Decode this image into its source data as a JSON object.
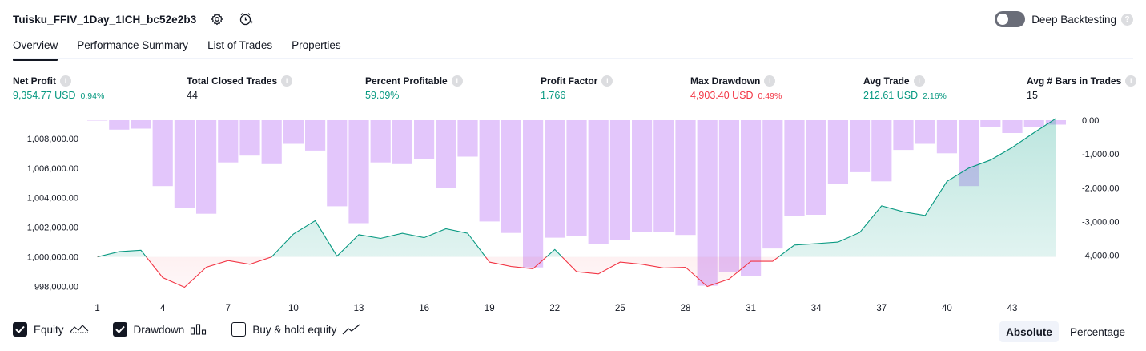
{
  "header": {
    "title": "Tuisku_FFIV_1Day_1ICH_bc52e2b3"
  },
  "deep_backtesting": {
    "label": "Deep Backtesting",
    "help": "?"
  },
  "tabs": [
    {
      "label": "Overview"
    },
    {
      "label": "Performance Summary"
    },
    {
      "label": "List of Trades"
    },
    {
      "label": "Properties"
    }
  ],
  "metrics": {
    "net_profit": {
      "label": "Net Profit",
      "value": "9,354.77 USD",
      "pct": "0.94%"
    },
    "total_closed_trades": {
      "label": "Total Closed Trades",
      "value": "44"
    },
    "percent_profitable": {
      "label": "Percent Profitable",
      "value": "59.09%"
    },
    "profit_factor": {
      "label": "Profit Factor",
      "value": "1.766"
    },
    "max_drawdown": {
      "label": "Max Drawdown",
      "value": "4,903.40 USD",
      "pct": "0.49%"
    },
    "avg_trade": {
      "label": "Avg Trade",
      "value": "212.61 USD",
      "pct": "2.16%"
    },
    "avg_bars": {
      "label": "Avg # Bars in Trades",
      "value": "15"
    }
  },
  "info_glyph": "i",
  "legend": {
    "equity": "Equity",
    "drawdown": "Drawdown",
    "buy_hold": "Buy & hold equity"
  },
  "modes": {
    "absolute": "Absolute",
    "percentage": "Percentage"
  },
  "colors": {
    "accent": "#089981",
    "loss": "#f23645",
    "drawdown_bar": "#e1c3fb",
    "equity_fill": "#d4f0ea"
  },
  "chart_data": {
    "type": "bar+line",
    "x": [
      1,
      2,
      3,
      4,
      5,
      6,
      7,
      8,
      9,
      10,
      11,
      12,
      13,
      14,
      15,
      16,
      17,
      18,
      19,
      20,
      21,
      22,
      23,
      24,
      25,
      26,
      27,
      28,
      29,
      30,
      31,
      32,
      33,
      34,
      35,
      36,
      37,
      38,
      39,
      40,
      41,
      42,
      43,
      44,
      45
    ],
    "x_tick_labels": [
      "1",
      "4",
      "7",
      "10",
      "13",
      "16",
      "19",
      "22",
      "25",
      "28",
      "31",
      "34",
      "37",
      "40",
      "43"
    ],
    "left_ticks": [
      "998,000.00",
      "1,000,000.00",
      "1,002,000.00",
      "1,004,000.00",
      "1,006,000.00",
      "1,008,000.00"
    ],
    "right_ticks": [
      "0.00",
      "-1,000.00",
      "-2,000.00",
      "-3,000.00",
      "-4,000.00"
    ],
    "series": [
      {
        "name": "Equity",
        "axis": "left",
        "baseline": 1000000,
        "values": [
          1000000,
          1000350,
          1000450,
          998600,
          997950,
          999300,
          999750,
          999500,
          1000000,
          1001550,
          1002450,
          1000050,
          1001500,
          1001250,
          1001600,
          1001300,
          1001900,
          1001600,
          999650,
          999350,
          999200,
          1000500,
          999000,
          998850,
          999650,
          999500,
          999250,
          999300,
          998000,
          998500,
          999700,
          999700,
          1000800,
          1000900,
          1001000,
          1001650,
          1003450,
          1003050,
          1002800,
          1005100,
          1006000,
          1006550,
          1007400,
          1008400,
          1009354.77
        ]
      },
      {
        "name": "Drawdown",
        "axis": "right",
        "values": [
          0,
          -280,
          -250,
          -1950,
          -2600,
          -2770,
          -1250,
          -1050,
          -1300,
          -700,
          -900,
          -2550,
          -3050,
          -1250,
          -1300,
          -1150,
          -2000,
          -1080,
          -3000,
          -3340,
          -4360,
          -3480,
          -3440,
          -3670,
          -3540,
          -3320,
          -3320,
          -3400,
          -4903.4,
          -4500,
          -4620,
          -3800,
          -2830,
          -2800,
          -1880,
          -1540,
          -1810,
          -880,
          -700,
          -980,
          -1950,
          -200,
          -380,
          -200,
          -130
        ]
      }
    ],
    "left_range": [
      997250,
      1009354.77
    ],
    "right_range": [
      -4903.4,
      0
    ]
  }
}
